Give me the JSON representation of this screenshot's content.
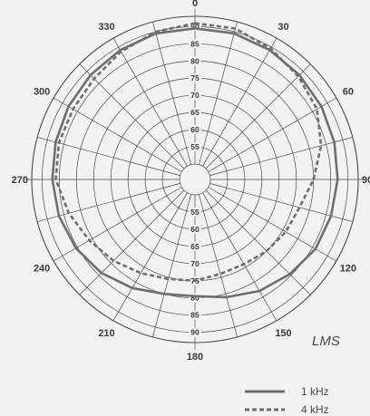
{
  "logo": "LMS",
  "chart_data": {
    "type": "polar",
    "angle_labels": [
      "0",
      "30",
      "60",
      "90",
      "120",
      "150",
      "180",
      "210",
      "240",
      "270",
      "300",
      "330"
    ],
    "angle_ticks_deg": [
      0,
      30,
      60,
      90,
      120,
      150,
      180,
      210,
      240,
      270,
      300,
      330
    ],
    "radial_labels": [
      "55",
      "60",
      "65",
      "70",
      "75",
      "80",
      "85",
      "90"
    ],
    "radial_range": [
      50,
      93
    ],
    "spoke_step_deg": 15,
    "legend": [
      "1 kHz",
      "4 kHz"
    ],
    "series": [
      {
        "name": "1 kHz",
        "color": "#6e6e6e",
        "dash": "solid",
        "angles": [
          0,
          15,
          30,
          45,
          60,
          75,
          90,
          105,
          120,
          135,
          150,
          165,
          180,
          195,
          210,
          225,
          240,
          255,
          270,
          285,
          300,
          315,
          330,
          345
        ],
        "values": [
          89.5,
          89.5,
          89,
          88.5,
          88,
          87.5,
          87,
          86.5,
          86,
          84.5,
          83,
          81,
          79.5,
          80,
          82,
          84,
          85.5,
          86.5,
          87,
          87.5,
          88,
          88.5,
          89,
          89.5
        ]
      },
      {
        "name": "4 kHz",
        "color": "#6e6e6e",
        "dash": "dashed",
        "angles": [
          0,
          15,
          30,
          45,
          60,
          75,
          90,
          105,
          120,
          135,
          150,
          165,
          180,
          195,
          210,
          225,
          240,
          255,
          270,
          285,
          300,
          315,
          330,
          345
        ],
        "values": [
          91,
          91,
          89.5,
          88,
          86.5,
          83.5,
          80,
          77,
          76,
          75,
          74,
          74,
          75,
          75.5,
          77,
          79,
          81,
          83.5,
          86,
          86.5,
          86.5,
          87,
          88.5,
          90
        ]
      }
    ]
  }
}
